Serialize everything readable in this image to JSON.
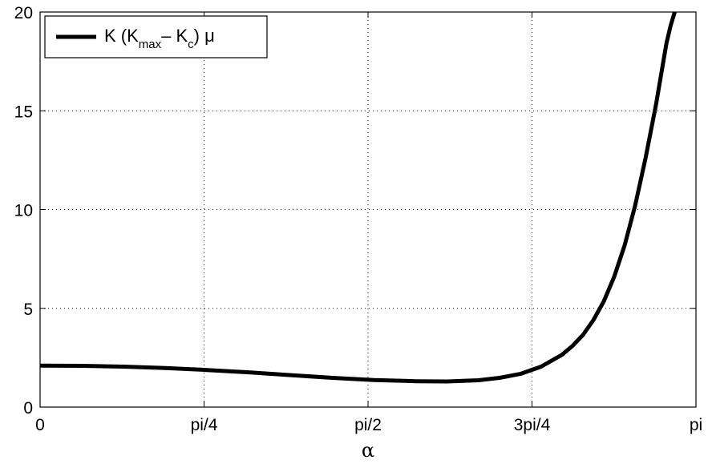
{
  "chart_data": {
    "type": "line",
    "xlabel": "α",
    "ylabel": "",
    "xlim": [
      0,
      3.14159
    ],
    "ylim": [
      0,
      20
    ],
    "grid": true,
    "legend_position": "top-left",
    "x_ticks": [
      {
        "value": 0,
        "label": "0"
      },
      {
        "value": 0.7854,
        "label": "pi/4"
      },
      {
        "value": 1.5708,
        "label": "pi/2"
      },
      {
        "value": 2.3562,
        "label": "3pi/4"
      },
      {
        "value": 3.14159,
        "label": "pi"
      }
    ],
    "y_ticks": [
      {
        "value": 0,
        "label": "0"
      },
      {
        "value": 5,
        "label": "5"
      },
      {
        "value": 10,
        "label": "10"
      },
      {
        "value": 15,
        "label": "15"
      },
      {
        "value": 20,
        "label": "20"
      }
    ],
    "legend": {
      "prefix": "K (K",
      "sub1": "max",
      "mid": "– K",
      "sub2": "c",
      "suffix": ") μ"
    },
    "series": [
      {
        "name": "K (Kmax – Kc) μ",
        "color": "#000000",
        "x": [
          0,
          0.2,
          0.4,
          0.6,
          0.8,
          1.0,
          1.2,
          1.4,
          1.6,
          1.8,
          1.95,
          2.1,
          2.2,
          2.3,
          2.4,
          2.5,
          2.55,
          2.6,
          2.65,
          2.7,
          2.75,
          2.8,
          2.85,
          2.9,
          2.95,
          3.0,
          3.02,
          3.04
        ],
        "y": [
          2.1,
          2.09,
          2.05,
          1.98,
          1.88,
          1.76,
          1.62,
          1.48,
          1.37,
          1.31,
          1.3,
          1.36,
          1.48,
          1.68,
          2.05,
          2.65,
          3.1,
          3.65,
          4.4,
          5.35,
          6.6,
          8.2,
          10.2,
          12.6,
          15.3,
          18.4,
          19.3,
          20.0
        ]
      }
    ]
  }
}
